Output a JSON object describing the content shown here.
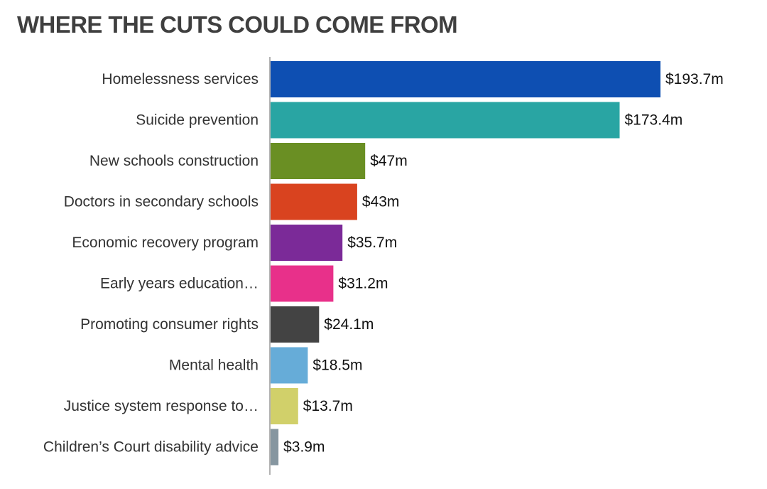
{
  "chart_data": {
    "type": "bar",
    "orientation": "horizontal",
    "title": "WHERE THE CUTS COULD COME FROM",
    "categories": [
      "Homelessness services",
      "Suicide prevention",
      "New schools construction",
      "Doctors in secondary schools",
      "Economic recovery program",
      "Early years education…",
      "Promoting consumer rights",
      "Mental health",
      "Justice system response to…",
      "Children’s Court disability advice"
    ],
    "values": [
      193.7,
      173.4,
      47,
      43,
      35.7,
      31.2,
      24.1,
      18.5,
      13.7,
      3.9
    ],
    "value_labels": [
      "$193.7m",
      "$173.4m",
      "$47m",
      "$43m",
      "$35.7m",
      "$31.2m",
      "$24.1m",
      "$18.5m",
      "$13.7m",
      "$3.9m"
    ],
    "colors": [
      "#0e4fb2",
      "#29a5a3",
      "#6a8f23",
      "#d9431f",
      "#7b2a98",
      "#e8308a",
      "#434343",
      "#66acd8",
      "#d1d06a",
      "#8696a0"
    ],
    "xlabel": "",
    "ylabel": "",
    "xlim": [
      0,
      193.7
    ],
    "grid": false,
    "legend": "none"
  }
}
